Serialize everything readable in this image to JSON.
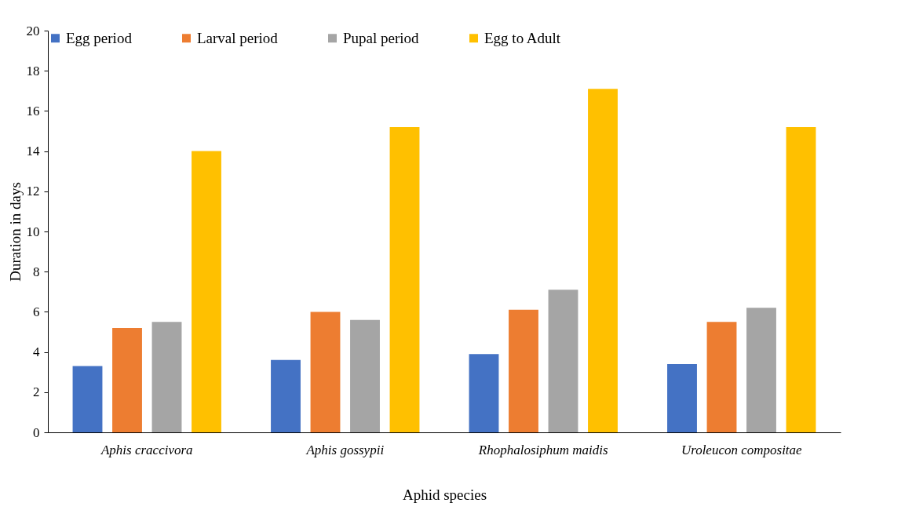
{
  "chart_data": {
    "type": "bar",
    "xlabel": "Aphid species",
    "ylabel": "Duration in days",
    "categories": [
      "Aphis craccivora",
      "Aphis gossypii",
      "Rhophalosiphum maidis",
      "Uroleucon compositae"
    ],
    "series": [
      {
        "name": "Egg period",
        "color": "#4472c4",
        "values": [
          3.3,
          3.6,
          3.9,
          3.4
        ]
      },
      {
        "name": "Larval period",
        "color": "#ed7d31",
        "values": [
          5.2,
          6.0,
          6.1,
          5.5
        ]
      },
      {
        "name": "Pupal period",
        "color": "#a5a5a5",
        "values": [
          5.5,
          5.6,
          7.1,
          6.2
        ]
      },
      {
        "name": "Egg to Adult",
        "color": "#ffc000",
        "values": [
          14.0,
          15.2,
          17.1,
          15.2
        ]
      }
    ],
    "ylim": [
      0,
      20
    ],
    "yticks": [
      0,
      2,
      4,
      6,
      8,
      10,
      12,
      14,
      16,
      18,
      20
    ],
    "grid": false,
    "legend": "top"
  }
}
